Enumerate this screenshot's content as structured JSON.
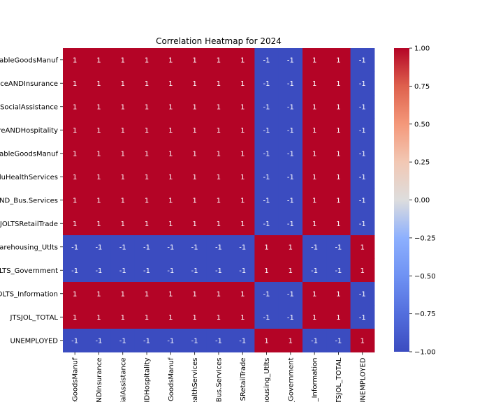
{
  "chart_data": {
    "type": "heatmap",
    "title": "Correlation Heatmap for 2024",
    "row_labels": [
      "ableGoodsManuf",
      "ceANDInsurance",
      "SocialAssistance",
      "reANDHospitality",
      "ableGoodsManuf",
      "luHealthServices",
      "ND_Bus.Services",
      "JOLTSRetailTrade",
      "arehousing_Utlts",
      "LTS_Government",
      "OLTS_Information",
      "JTSJOL_TOTAL",
      "UNEMPLOYED"
    ],
    "col_labels": [
      "eGoodsManuf",
      "NDInsurance",
      "ialAssistance",
      "IDHospitality",
      "GoodsManuf",
      "ealthServices",
      "Bus.Services",
      "SRetailTrade",
      "housing_Utlts",
      "_Government",
      "_Information",
      "TSJOL_TOTAL",
      "UNEMPLOYED"
    ],
    "values": [
      [
        1,
        1,
        1,
        1,
        1,
        1,
        1,
        1,
        -1,
        -1,
        1,
        1,
        -1
      ],
      [
        1,
        1,
        1,
        1,
        1,
        1,
        1,
        1,
        -1,
        -1,
        1,
        1,
        -1
      ],
      [
        1,
        1,
        1,
        1,
        1,
        1,
        1,
        1,
        -1,
        -1,
        1,
        1,
        -1
      ],
      [
        1,
        1,
        1,
        1,
        1,
        1,
        1,
        1,
        -1,
        -1,
        1,
        1,
        -1
      ],
      [
        1,
        1,
        1,
        1,
        1,
        1,
        1,
        1,
        -1,
        -1,
        1,
        1,
        -1
      ],
      [
        1,
        1,
        1,
        1,
        1,
        1,
        1,
        1,
        -1,
        -1,
        1,
        1,
        -1
      ],
      [
        1,
        1,
        1,
        1,
        1,
        1,
        1,
        1,
        -1,
        -1,
        1,
        1,
        -1
      ],
      [
        1,
        1,
        1,
        1,
        1,
        1,
        1,
        1,
        -1,
        -1,
        1,
        1,
        -1
      ],
      [
        -1,
        -1,
        -1,
        -1,
        -1,
        -1,
        -1,
        -1,
        1,
        1,
        -1,
        -1,
        1
      ],
      [
        -1,
        -1,
        -1,
        -1,
        -1,
        -1,
        -1,
        -1,
        1,
        1,
        -1,
        -1,
        1
      ],
      [
        1,
        1,
        1,
        1,
        1,
        1,
        1,
        1,
        -1,
        -1,
        1,
        1,
        -1
      ],
      [
        1,
        1,
        1,
        1,
        1,
        1,
        1,
        1,
        -1,
        -1,
        1,
        1,
        -1
      ],
      [
        -1,
        -1,
        -1,
        -1,
        -1,
        -1,
        -1,
        -1,
        1,
        1,
        -1,
        -1,
        1
      ]
    ],
    "colorbar": {
      "range": [
        -1,
        1
      ],
      "ticks": [
        "1.00",
        "0.75",
        "0.50",
        "0.25",
        "0.00",
        "−0.25",
        "−0.50",
        "−0.75",
        "−1.00"
      ],
      "colormap": "coolwarm"
    },
    "colors": {
      "positive": "#b40426",
      "negative": "#3b4cc0",
      "neutral": "#dddddd"
    }
  }
}
